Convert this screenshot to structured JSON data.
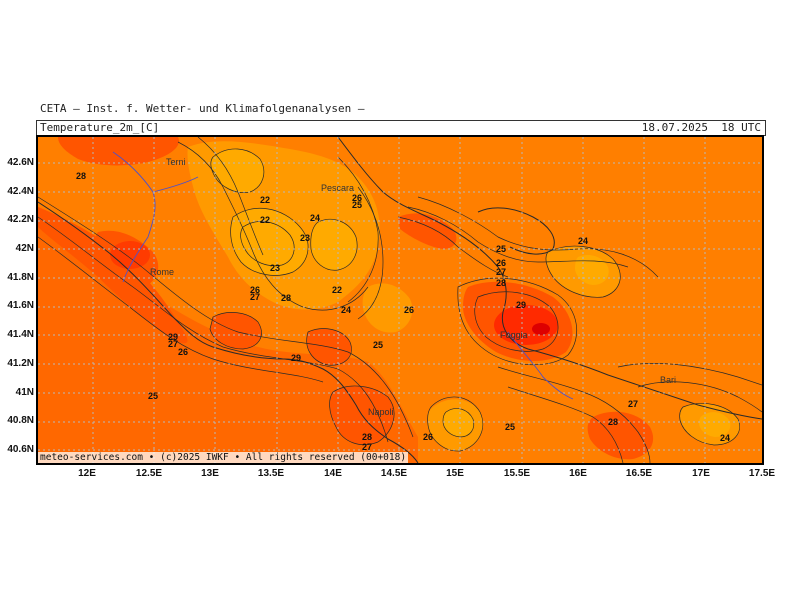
{
  "header": {
    "source": "CETA – Inst. f. Wetter- und Klimafolgenanalysen –",
    "variable": "Temperature_2m_[C]",
    "datetime": "18.07.2025  18 UTC"
  },
  "footer": "meteo-services.com • (c)2025 IWKF • All rights reserved (00+018)",
  "axes": {
    "lat_ticks": [
      "42.6N",
      "42.4N",
      "42.2N",
      "42N",
      "41.8N",
      "41.6N",
      "41.4N",
      "41.2N",
      "41N",
      "40.8N",
      "40.6N"
    ],
    "lon_ticks": [
      "12E",
      "12.5E",
      "13E",
      "13.5E",
      "14E",
      "14.5E",
      "15E",
      "15.5E",
      "16E",
      "16.5E",
      "17E",
      "17.5E"
    ]
  },
  "colors": {
    "t22_24": "#ffaa00",
    "t24_26": "#ff9a00",
    "t26_28": "#ff7f00",
    "t28_30": "#ff5500",
    "t30_32": "#ff2a00",
    "t32": "#dd0000",
    "grid": "#b8b8b8",
    "coast": "#2a2a2a",
    "border": "#5050c8"
  },
  "cities": [
    {
      "name": "Terni"
    },
    {
      "name": "Pescara"
    },
    {
      "name": "Rome"
    },
    {
      "name": "Foggia"
    },
    {
      "name": "Napoli"
    },
    {
      "name": "Bari"
    }
  ],
  "contour_labels": [
    {
      "text": "28"
    },
    {
      "text": "22"
    },
    {
      "text": "22"
    },
    {
      "text": "24"
    },
    {
      "text": "26"
    },
    {
      "text": "25"
    },
    {
      "text": "23"
    },
    {
      "text": "23"
    },
    {
      "text": "26"
    },
    {
      "text": "27"
    },
    {
      "text": "28"
    },
    {
      "text": "22"
    },
    {
      "text": "24"
    },
    {
      "text": "26"
    },
    {
      "text": "29"
    },
    {
      "text": "27"
    },
    {
      "text": "26"
    },
    {
      "text": "29"
    },
    {
      "text": "25"
    },
    {
      "text": "25"
    },
    {
      "text": "26"
    },
    {
      "text": "27"
    },
    {
      "text": "28"
    },
    {
      "text": "24"
    },
    {
      "text": "29"
    },
    {
      "text": "25"
    },
    {
      "text": "28"
    },
    {
      "text": "27"
    },
    {
      "text": "26"
    },
    {
      "text": "25"
    },
    {
      "text": "27"
    },
    {
      "text": "28"
    },
    {
      "text": "24"
    }
  ]
}
